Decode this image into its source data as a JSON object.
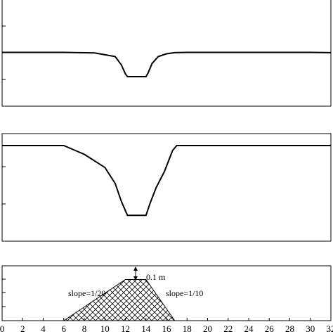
{
  "chart_data": [
    {
      "type": "line",
      "panel": "top",
      "x": [
        0,
        6,
        9,
        11,
        11.6,
        12,
        12.2,
        14,
        14.2,
        14.6,
        15.2,
        16,
        16.8,
        18,
        20,
        30,
        32
      ],
      "y": [
        0,
        0,
        -0.02,
        -0.15,
        -0.45,
        -0.78,
        -0.88,
        -0.88,
        -0.75,
        -0.4,
        -0.15,
        -0.05,
        -0.01,
        0,
        0,
        0,
        -0.01
      ],
      "xlim": [
        0,
        32
      ],
      "ylim": [
        -1.95,
        1.95
      ],
      "grid": false,
      "legend": false
    },
    {
      "type": "line",
      "panel": "middle",
      "x": [
        0,
        6,
        8,
        10,
        11,
        11.6,
        12.2,
        14,
        14.4,
        15,
        15.8,
        16.6,
        17,
        24,
        32
      ],
      "y": [
        0.6,
        0.6,
        0.38,
        0.05,
        -0.35,
        -0.8,
        -1.15,
        -1.15,
        -0.85,
        -0.45,
        -0.05,
        0.48,
        0.6,
        0.6,
        0.6
      ],
      "xlim": [
        0,
        32
      ],
      "ylim": [
        -1.8,
        0.9
      ],
      "grid": false,
      "legend": false
    },
    {
      "type": "area",
      "panel": "bottom",
      "x": [
        6,
        12,
        14,
        16.8
      ],
      "y": [
        0,
        0.3,
        0.3,
        0
      ],
      "fill": "crosshatch",
      "xlim": [
        0,
        32
      ],
      "ylim": [
        0,
        0.4
      ],
      "tick_labels_x": [
        "0",
        "2",
        "4",
        "6",
        "8",
        "10",
        "12",
        "14",
        "16",
        "18",
        "20",
        "22",
        "24",
        "26",
        "28",
        "30",
        "32"
      ],
      "annotations": [
        "0.1 m",
        "slope=1/20",
        "slope=1/10"
      ]
    }
  ],
  "colors": {
    "line": "#000000",
    "hatch": "#000000",
    "background": "#ffffff"
  }
}
